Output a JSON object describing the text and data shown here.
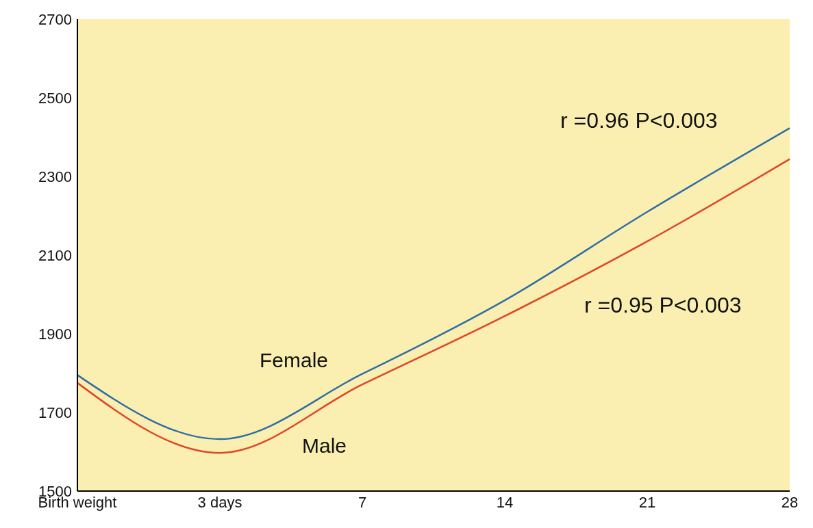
{
  "chart_data": {
    "type": "line",
    "categories": [
      "Birth weight",
      "3 days",
      "7",
      "14",
      "21",
      "28"
    ],
    "series": [
      {
        "name": "Female",
        "color": "#2f6ea6",
        "values": [
          1795,
          1632,
          1798,
          1985,
          2210,
          2423
        ]
      },
      {
        "name": "Male",
        "color": "#e0452a",
        "values": [
          1775,
          1597,
          1771,
          1945,
          2135,
          2344
        ]
      }
    ],
    "ylim": [
      1500,
      2700
    ],
    "yticks": [
      1500,
      1700,
      1900,
      2100,
      2300,
      2500,
      2700
    ],
    "grid": false,
    "marker": "none",
    "line_style": "solid",
    "annotations": [
      "r =0.96 P<0.003",
      "r =0.95 P<0.003"
    ]
  }
}
